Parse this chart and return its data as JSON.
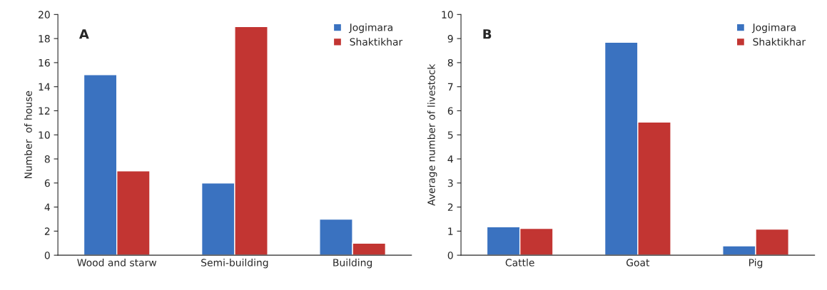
{
  "chart_data": [
    {
      "type": "bar",
      "title": "A",
      "ylabel": "Number  of house",
      "categories": [
        "Wood and starw",
        "Semi-building",
        "Building"
      ],
      "series": [
        {
          "name": "Jogimara",
          "color": "#3a72c0",
          "values": [
            15,
            6,
            3
          ]
        },
        {
          "name": "Shaktikhar",
          "color": "#c23532",
          "values": [
            7,
            19,
            1
          ]
        }
      ],
      "ylim": [
        0,
        20
      ],
      "yticks": [
        0,
        2,
        4,
        6,
        8,
        10,
        12,
        14,
        16,
        18,
        20
      ],
      "legend": "top right",
      "grid": false
    },
    {
      "type": "bar",
      "title": "B",
      "ylabel": "Average number of livestock",
      "categories": [
        "Cattle",
        "Goat",
        "Pig"
      ],
      "series": [
        {
          "name": "Jogimara",
          "color": "#3a72c0",
          "values": [
            1.18,
            8.85,
            0.39
          ]
        },
        {
          "name": "Shaktikhar",
          "color": "#c23532",
          "values": [
            1.11,
            5.53,
            1.08
          ]
        }
      ],
      "ylim": [
        0,
        10
      ],
      "yticks": [
        0,
        1,
        2,
        3,
        4,
        5,
        6,
        7,
        8,
        9,
        10
      ],
      "legend": "top right",
      "grid": false
    }
  ]
}
